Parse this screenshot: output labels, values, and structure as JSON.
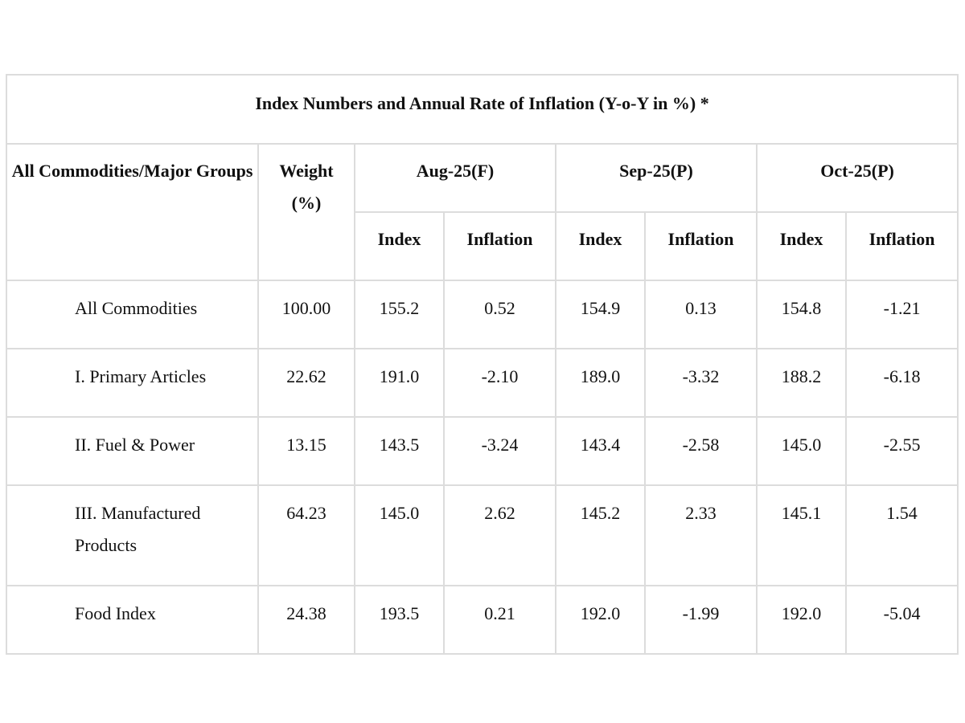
{
  "table": {
    "title": "Index Numbers and Annual Rate of Inflation (Y-o-Y in %) *",
    "header": {
      "group": "All Commodities/Major Groups",
      "weight": "Weight (%)",
      "months": [
        "Aug-25(F)",
        "Sep-25(P)",
        "Oct-25(P)"
      ],
      "subheaders": [
        "Index",
        "Inflation",
        "Index",
        "Inflation",
        "Index",
        "Inflation"
      ]
    },
    "rows": [
      [
        "All Commodities",
        "100.00",
        "155.2",
        "0.52",
        "154.9",
        "0.13",
        "154.8",
        "-1.21"
      ],
      [
        "I. Primary Articles",
        "22.62",
        "191.0",
        "-2.10",
        "189.0",
        "-3.32",
        "188.2",
        "-6.18"
      ],
      [
        "II. Fuel & Power",
        "13.15",
        "143.5",
        "-3.24",
        "143.4",
        "-2.58",
        "145.0",
        "-2.55"
      ],
      [
        "III. Manufactured Products",
        "64.23",
        "145.0",
        "2.62",
        "145.2",
        "2.33",
        "145.1",
        "1.54"
      ],
      [
        "Food Index",
        "24.38",
        "193.5",
        "0.21",
        "192.0",
        "-1.99",
        "192.0",
        "-5.04"
      ]
    ]
  }
}
